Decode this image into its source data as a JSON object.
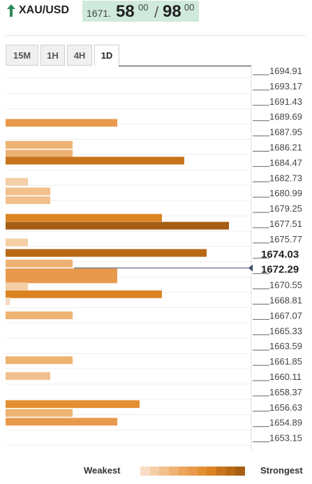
{
  "header": {
    "symbol": "XAU/USD",
    "price_int": "1671.",
    "bid_big": "58",
    "bid_sup": "00",
    "slash": "/",
    "ask_big": "98",
    "ask_sup": "00",
    "arrow_icon": "up-arrow-icon",
    "arrow_color": "#2e8b57",
    "quote_bg": "#cfe9dc"
  },
  "tabs": [
    {
      "label": "15M",
      "active": false
    },
    {
      "label": "1H",
      "active": false
    },
    {
      "label": "4H",
      "active": false
    },
    {
      "label": "1D",
      "active": true
    }
  ],
  "chart_data": {
    "type": "bar",
    "orientation": "horizontal",
    "price_levels": [
      "1694.91",
      "1693.17",
      "1691.43",
      "1689.69",
      "1687.95",
      "1686.21",
      "1684.47",
      "1682.73",
      "1680.99",
      "1679.25",
      "1677.51",
      "1675.77",
      "1674.03",
      "1672.29",
      "1670.55",
      "1668.81",
      "1667.07",
      "1665.33",
      "1663.59",
      "1661.85",
      "1660.11",
      "1658.37",
      "1656.63",
      "1654.89",
      "1653.15"
    ],
    "highlighted_levels": [
      "1674.03",
      "1672.29"
    ],
    "current_price_marker": 1672.29,
    "strength_scale_max": 10,
    "bars": [
      {
        "price": 1689.0,
        "strength": 5
      },
      {
        "price": 1686.5,
        "strength": 3
      },
      {
        "price": 1685.5,
        "strength": 3
      },
      {
        "price": 1684.7,
        "strength": 8
      },
      {
        "price": 1682.3,
        "strength": 1
      },
      {
        "price": 1681.2,
        "strength": 2
      },
      {
        "price": 1680.2,
        "strength": 2
      },
      {
        "price": 1678.2,
        "strength": 7
      },
      {
        "price": 1677.3,
        "strength": 10
      },
      {
        "price": 1675.4,
        "strength": 1
      },
      {
        "price": 1674.2,
        "strength": 9
      },
      {
        "price": 1673.0,
        "strength": 3
      },
      {
        "price": 1672.0,
        "strength": 5
      },
      {
        "price": 1671.2,
        "strength": 5
      },
      {
        "price": 1670.4,
        "strength": 1
      },
      {
        "price": 1669.5,
        "strength": 7
      },
      {
        "price": 1668.7,
        "strength": 0.2
      },
      {
        "price": 1667.1,
        "strength": 3
      },
      {
        "price": 1662.0,
        "strength": 3
      },
      {
        "price": 1660.2,
        "strength": 2
      },
      {
        "price": 1657.0,
        "strength": 6
      },
      {
        "price": 1656.0,
        "strength": 3
      },
      {
        "price": 1655.0,
        "strength": 5
      }
    ],
    "strength_colors": [
      "#f7dcc3",
      "#f4cfa6",
      "#f1c08b",
      "#eeb272",
      "#eca55c",
      "#e8994b",
      "#e38f33",
      "#dc8423",
      "#c8741c",
      "#b86916",
      "#a65e15"
    ]
  },
  "legend": {
    "weakest": "Weakest",
    "strongest": "Strongest"
  }
}
